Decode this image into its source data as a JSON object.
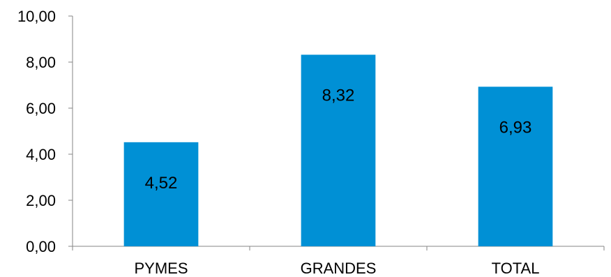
{
  "chart_data": {
    "type": "bar",
    "categories": [
      "PYMES",
      "GRANDES",
      "TOTAL"
    ],
    "values": [
      4.52,
      8.32,
      6.93
    ],
    "value_labels": [
      "4,52",
      "8,32",
      "6,93"
    ],
    "yticks": [
      0,
      2,
      4,
      6,
      8,
      10
    ],
    "ytick_labels": [
      "0,00",
      "2,00",
      "4,00",
      "6,00",
      "8,00",
      "10,00"
    ],
    "ylim": [
      0,
      10
    ],
    "title": "",
    "xlabel": "",
    "ylabel": "",
    "grid": false,
    "legend": "none",
    "bar_color": "#0090d5"
  }
}
